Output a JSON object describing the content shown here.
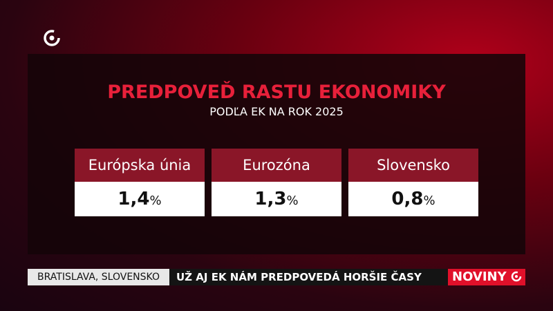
{
  "header": {
    "title": "PREDPOVEĎ RASTU EKONOMIKY",
    "subtitle": "PODĽA EK NA ROK 2025"
  },
  "cards": [
    {
      "label": "Európska únia",
      "value": "1,4",
      "unit": "%"
    },
    {
      "label": "Eurozóna",
      "value": "1,3",
      "unit": "%"
    },
    {
      "label": "Slovensko",
      "value": "0,8",
      "unit": "%"
    }
  ],
  "ticker": {
    "location": "BRATISLAVA, SLOVENSKO",
    "headline": "UŽ AJ EK NÁM PREDPOVEDÁ HORŠIE ČASY",
    "brand": "NOVINY"
  }
}
